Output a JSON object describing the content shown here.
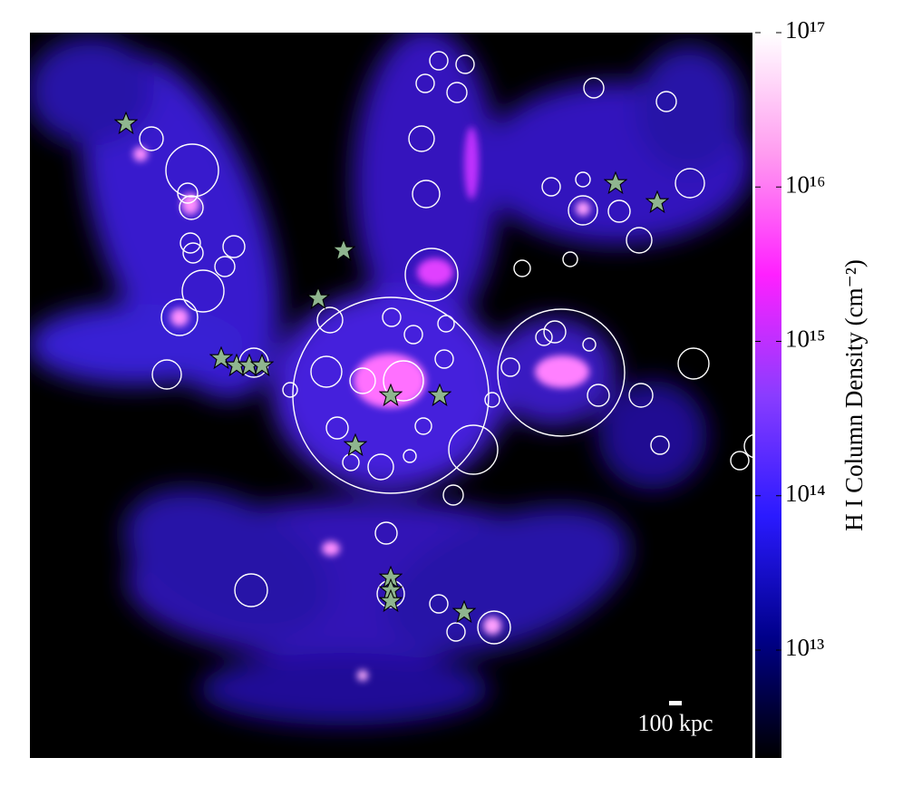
{
  "chart_data": {
    "type": "heatmap",
    "scale_bar": "100 kpc",
    "colorbar": {
      "label": "H I Column Density (cm⁻²)",
      "log": true,
      "lim": [
        2000000000000.0,
        1e+17
      ],
      "ticks": [
        {
          "value": 10000000000000.0,
          "label": "10¹³"
        },
        {
          "value": 100000000000000.0,
          "label": "10¹⁴"
        },
        {
          "value": 1000000000000000.0,
          "label": "10¹⁵"
        },
        {
          "value": 1e+16,
          "label": "10¹⁶"
        },
        {
          "value": 1e+17,
          "label": "10¹⁷"
        }
      ],
      "colormap": [
        "#000000",
        "#00008a",
        "#2a1aff",
        "#8a3cff",
        "#ff20ff",
        "#ff9cf0",
        "#ffffff"
      ]
    }
  }
}
